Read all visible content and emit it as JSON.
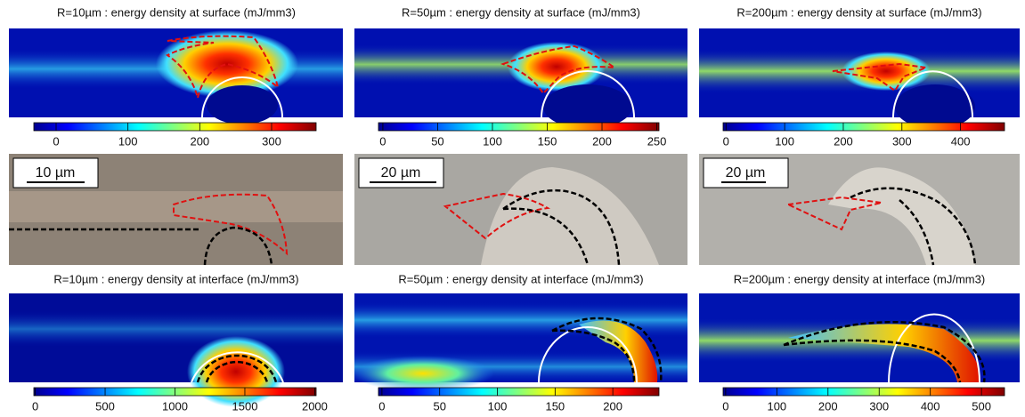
{
  "panels": [
    {
      "title": "R=10µm : energy density at surface (mJ/mm3)",
      "colorbar": {
        "lim": [
          -31,
          362
        ],
        "ticks": [
          0,
          100,
          200,
          300
        ]
      }
    },
    {
      "title": "R=50µm : energy density at surface (mJ/mm3)",
      "colorbar": {
        "lim": [
          -4,
          252
        ],
        "ticks": [
          0,
          50,
          100,
          150,
          200,
          250
        ]
      }
    },
    {
      "title": "R=200µm : energy density at surface (mJ/mm3)",
      "colorbar": {
        "lim": [
          -5,
          475
        ],
        "ticks": [
          0,
          100,
          200,
          300,
          400
        ]
      }
    },
    {
      "title": "R=10µm : energy density at interface (mJ/mm3)",
      "colorbar": {
        "lim": [
          -10,
          2010
        ],
        "ticks": [
          0,
          500,
          1000,
          1500,
          2000
        ]
      }
    },
    {
      "title": "R=50µm : energy density at interface (mJ/mm3)",
      "colorbar": {
        "lim": [
          -3,
          240
        ],
        "ticks": [
          0,
          50,
          100,
          150,
          200
        ]
      }
    },
    {
      "title": "R=200µm : energy density at interface (mJ/mm3)",
      "colorbar": {
        "lim": [
          -5,
          545
        ],
        "ticks": [
          0,
          100,
          200,
          300,
          400,
          500
        ]
      }
    }
  ],
  "scale_bars": [
    "10 µm",
    "20 µm",
    "20 µm"
  ]
}
